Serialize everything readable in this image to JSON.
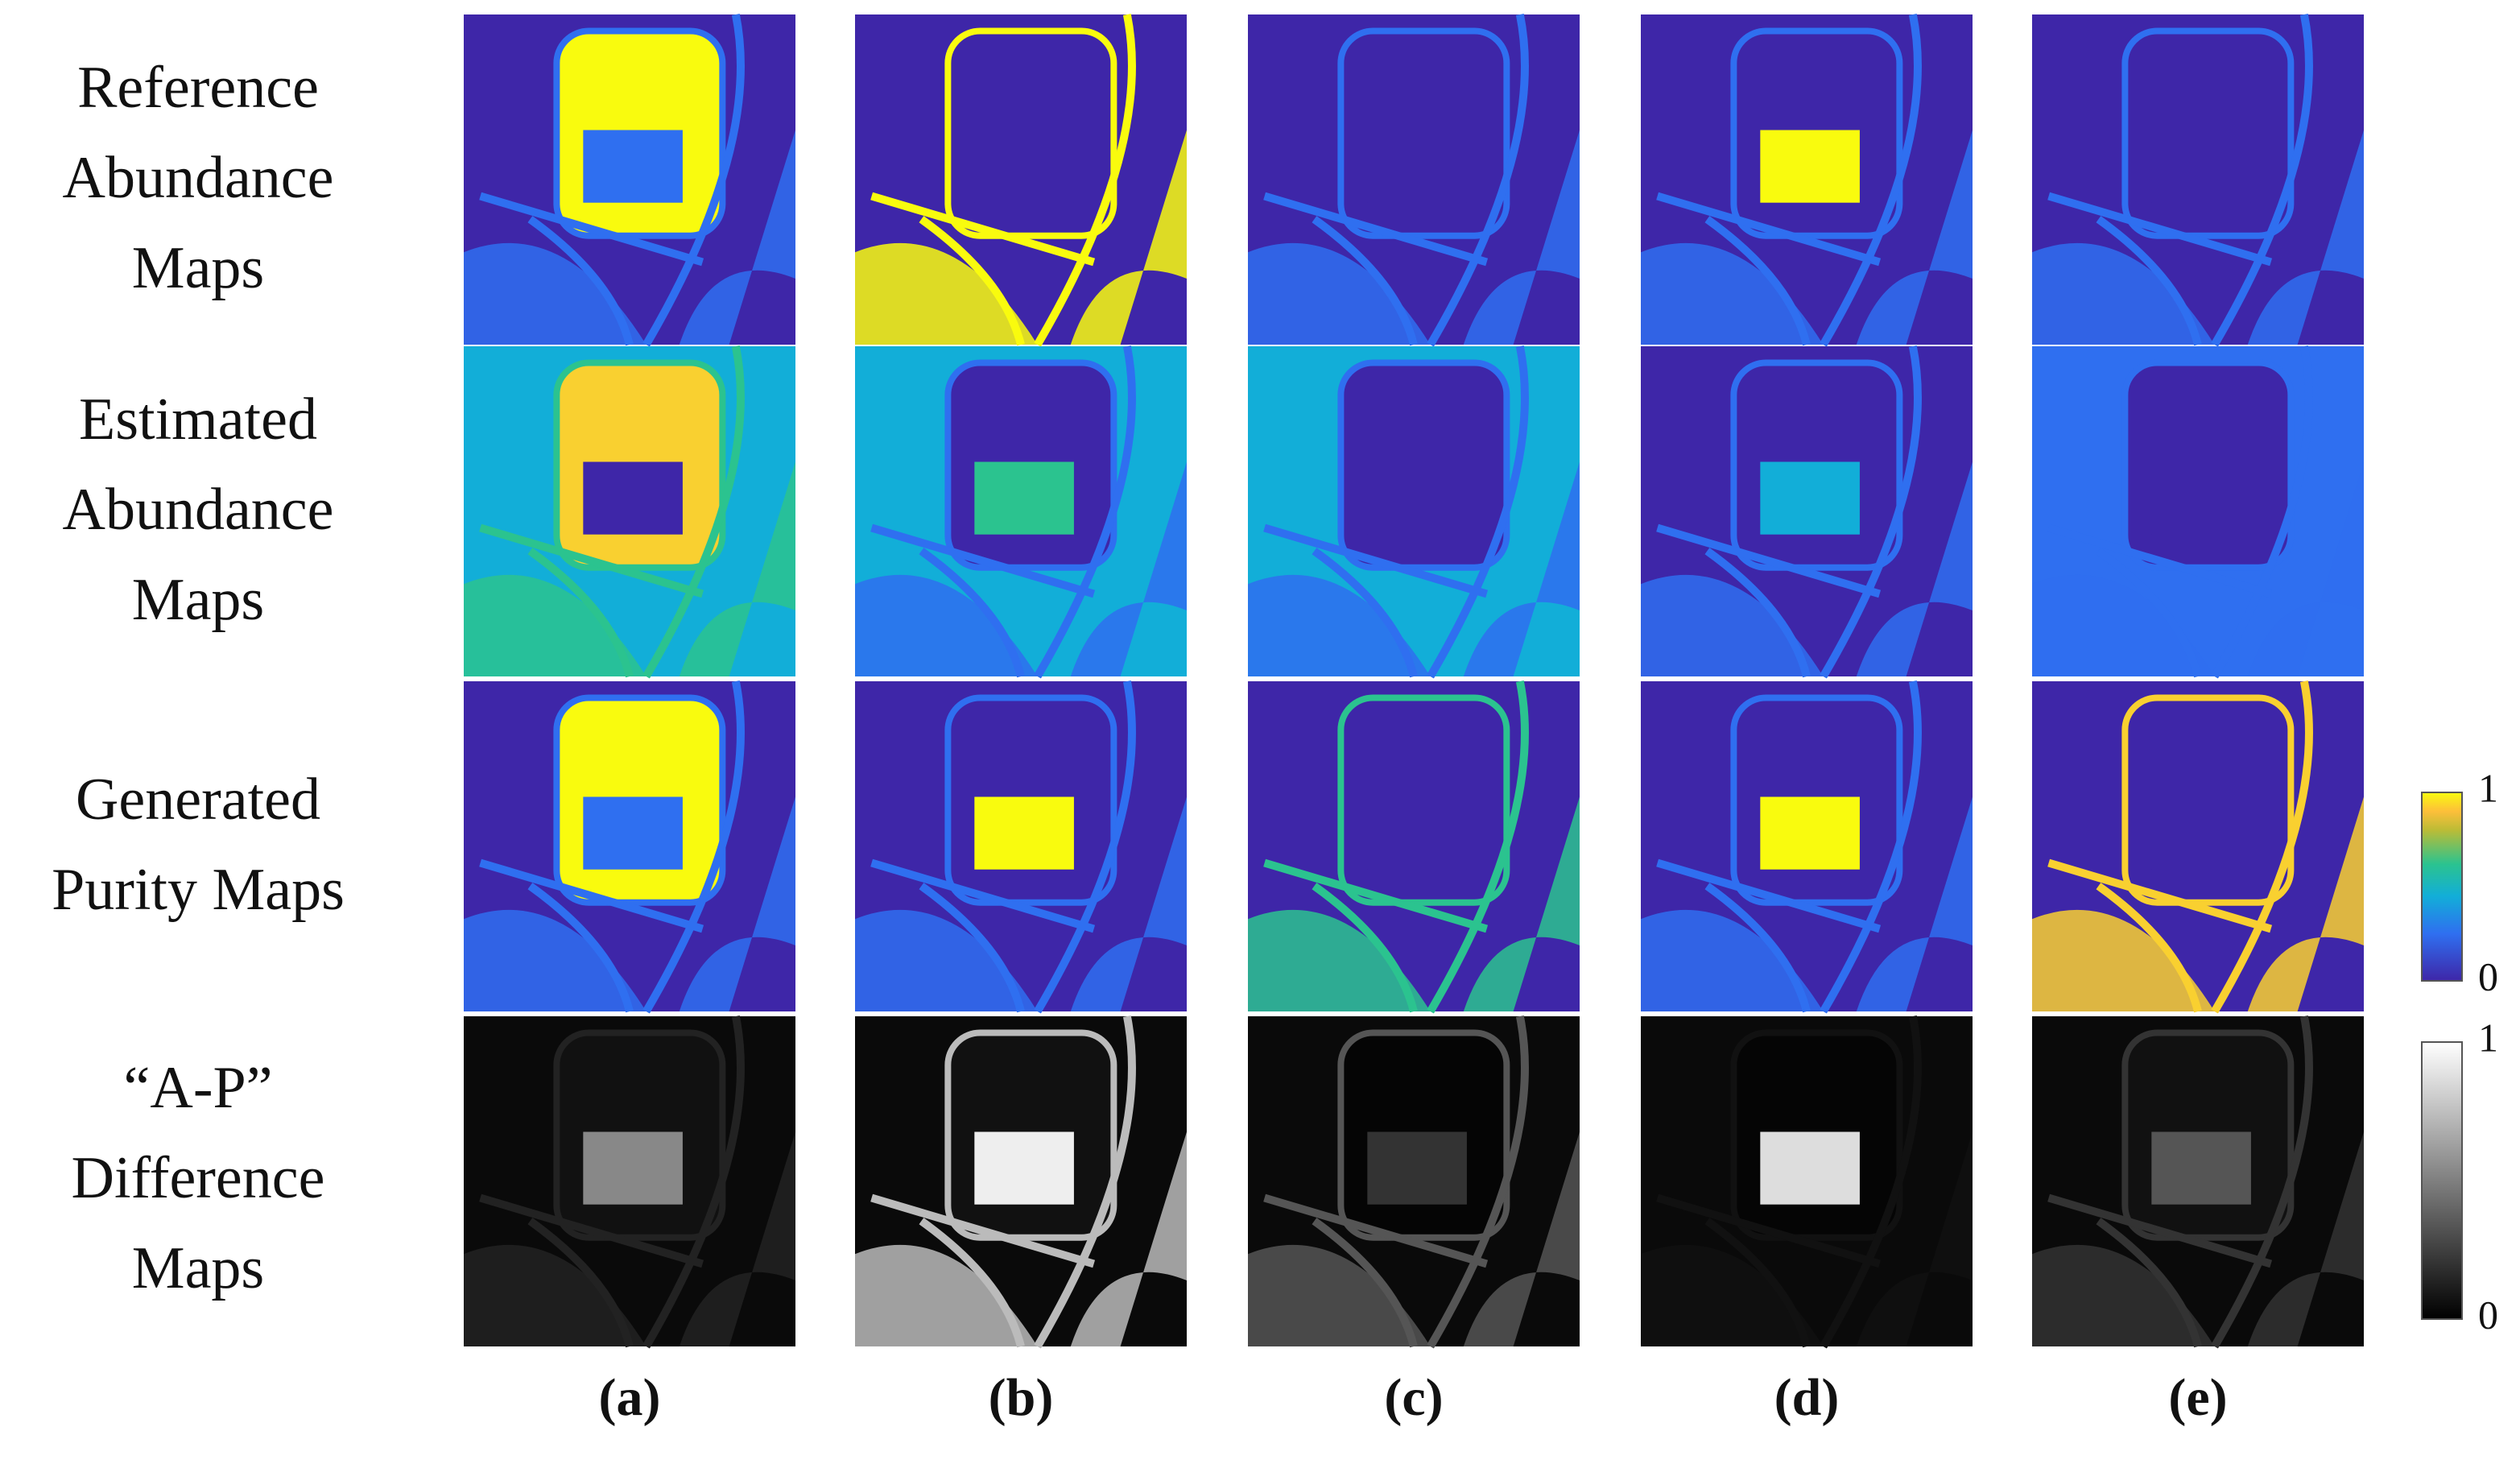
{
  "figure": {
    "row_labels": [
      [
        "Reference",
        "Abundance",
        "Maps"
      ],
      [
        "Estimated",
        "Abundance",
        "Maps"
      ],
      [
        "Generated",
        "Purity Maps"
      ],
      [
        "“A-P”",
        "Difference",
        "Maps"
      ]
    ],
    "column_labels": [
      "(a)",
      "(b)",
      "(c)",
      "(d)",
      "(e)"
    ],
    "colorbars": [
      {
        "colormap": "parula",
        "ticks": [
          1,
          0
        ]
      },
      {
        "colormap": "gray",
        "ticks": [
          1,
          0
        ]
      }
    ]
  }
}
